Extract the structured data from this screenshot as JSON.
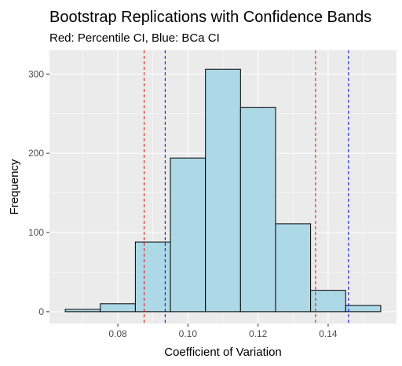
{
  "chart_data": {
    "type": "bar",
    "title": "Bootstrap Replications with Confidence Bands",
    "subtitle": "Red: Percentile CI, Blue: BCa CI",
    "xlabel": "Coefficient of Variation",
    "ylabel": "Frequency",
    "xlim": [
      0.0605,
      0.1595
    ],
    "ylim": [
      -15,
      330
    ],
    "x_ticks": [
      0.08,
      0.1,
      0.12,
      0.14
    ],
    "x_tick_labels": [
      "0.08",
      "0.10",
      "0.12",
      "0.14"
    ],
    "y_ticks": [
      0,
      100,
      200,
      300
    ],
    "y_tick_labels": [
      "0",
      "100",
      "200",
      "300"
    ],
    "bin_width": 0.01,
    "bins": [
      {
        "center": 0.07,
        "count": 3
      },
      {
        "center": 0.08,
        "count": 10
      },
      {
        "center": 0.09,
        "count": 88
      },
      {
        "center": 0.1,
        "count": 194
      },
      {
        "center": 0.11,
        "count": 306
      },
      {
        "center": 0.12,
        "count": 258
      },
      {
        "center": 0.13,
        "count": 111
      },
      {
        "center": 0.14,
        "count": 27
      },
      {
        "center": 0.15,
        "count": 8
      }
    ],
    "reference_lines": [
      {
        "x": 0.0875,
        "color": "#ff0000",
        "style": "dashed"
      },
      {
        "x": 0.1364,
        "color": "#ff0000",
        "style": "dashed"
      },
      {
        "x": 0.0935,
        "color": "#0000ff",
        "style": "dashed"
      },
      {
        "x": 0.1458,
        "color": "#0000ff",
        "style": "dashed"
      }
    ],
    "grid": true,
    "colors": {
      "bar_fill": "#add8e6",
      "bar_stroke": "#000000",
      "panel_bg": "#ebebeb",
      "grid_major": "#ffffff"
    }
  }
}
